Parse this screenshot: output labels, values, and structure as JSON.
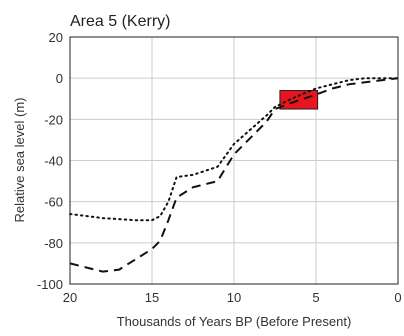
{
  "chart_data": {
    "type": "line",
    "title": "Area 5 (Kerry)",
    "xlabel": "Thousands of Years BP (Before Present)",
    "ylabel": "Relative sea level (m)",
    "xlim": [
      20,
      0
    ],
    "ylim": [
      -100,
      20
    ],
    "x_reversed": true,
    "grid": true,
    "xticks": [
      20,
      15,
      10,
      5,
      0
    ],
    "yticks": [
      20,
      0,
      -20,
      -40,
      -60,
      -80,
      -100
    ],
    "series": [
      {
        "style": "dotted",
        "color": "#111111",
        "points": [
          [
            20,
            -66
          ],
          [
            18,
            -68
          ],
          [
            16,
            -69
          ],
          [
            15,
            -69
          ],
          [
            14.5,
            -67
          ],
          [
            14,
            -60
          ],
          [
            13.5,
            -48
          ],
          [
            12.5,
            -47
          ],
          [
            11,
            -43
          ],
          [
            10,
            -32
          ],
          [
            9,
            -25
          ],
          [
            8,
            -18
          ],
          [
            7.5,
            -14
          ],
          [
            6.5,
            -10
          ],
          [
            5,
            -5
          ],
          [
            4,
            -3
          ],
          [
            3,
            -1
          ],
          [
            2,
            0
          ],
          [
            1,
            0
          ],
          [
            0,
            0
          ]
        ]
      },
      {
        "style": "dashed",
        "color": "#111111",
        "points": [
          [
            20,
            -90
          ],
          [
            19,
            -92
          ],
          [
            18,
            -94
          ],
          [
            17,
            -93
          ],
          [
            16,
            -88
          ],
          [
            15,
            -83
          ],
          [
            14.5,
            -79
          ],
          [
            14,
            -69
          ],
          [
            13.5,
            -58
          ],
          [
            12.5,
            -53
          ],
          [
            11,
            -50
          ],
          [
            10,
            -37
          ],
          [
            9,
            -29
          ],
          [
            8,
            -21
          ],
          [
            7.5,
            -15
          ],
          [
            6.5,
            -12
          ],
          [
            5,
            -8
          ],
          [
            4,
            -5
          ],
          [
            3,
            -3
          ],
          [
            2,
            -2
          ],
          [
            1,
            -1
          ],
          [
            0,
            0
          ]
        ]
      }
    ],
    "annotations": [
      {
        "type": "rect",
        "x_range": [
          7.2,
          4.9
        ],
        "y_range": [
          -15,
          -6
        ],
        "fill": "#e8141e",
        "stroke": "#222222"
      }
    ]
  }
}
